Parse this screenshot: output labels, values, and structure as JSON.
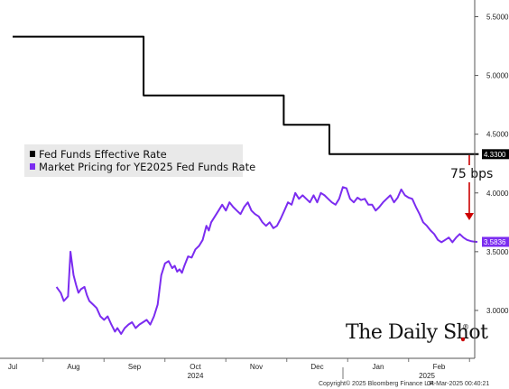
{
  "chart_data": {
    "type": "line",
    "title": "",
    "xlabel": "",
    "ylabel": "",
    "ylim": [
      2.7,
      5.55
    ],
    "grid": false,
    "legend_position": "middle-left",
    "y_ticks": [
      "5.5000",
      "5.0000",
      "4.5000",
      "4.0000",
      "3.5000",
      "3.0000"
    ],
    "y_tick_values": [
      5.5,
      5.0,
      4.5,
      4.0,
      3.5,
      3.0
    ],
    "x_month_labels": [
      "Jul",
      "Aug",
      "Sep",
      "Oct",
      "Nov",
      "Dec",
      "Jan",
      "Feb"
    ],
    "x_month_index": [
      0,
      1,
      2,
      3,
      4,
      5,
      6,
      7
    ],
    "x_year_labels": [
      "2024",
      "2025"
    ],
    "x_year_index": [
      3,
      6.8
    ],
    "colors": {
      "effr": "#000000",
      "market": "#7b2cf0",
      "arrow": "#cc0000",
      "brand_dot": "#cc0000"
    },
    "series": [
      {
        "name": "Fed Funds Effective Rate",
        "x": [
          0,
          2.15,
          2.15,
          4.45,
          4.45,
          5.2,
          5.2,
          7.65
        ],
        "values": [
          5.33,
          5.33,
          4.83,
          4.83,
          4.58,
          4.58,
          4.33,
          4.33
        ],
        "last_label": "4.3300"
      },
      {
        "name": "Market Pricing for YE2025 Fed Funds Rate",
        "x": [
          0.72,
          0.79,
          0.84,
          0.91,
          0.95,
          1.0,
          1.04,
          1.08,
          1.12,
          1.18,
          1.22,
          1.26,
          1.32,
          1.38,
          1.44,
          1.5,
          1.56,
          1.62,
          1.68,
          1.72,
          1.78,
          1.84,
          1.9,
          1.96,
          2.02,
          2.08,
          2.14,
          2.2,
          2.26,
          2.32,
          2.38,
          2.44,
          2.5,
          2.56,
          2.62,
          2.66,
          2.7,
          2.74,
          2.78,
          2.82,
          2.88,
          2.94,
          3.0,
          3.06,
          3.12,
          3.18,
          3.22,
          3.26,
          3.32,
          3.38,
          3.44,
          3.5,
          3.56,
          3.62,
          3.68,
          3.74,
          3.8,
          3.86,
          3.92,
          3.98,
          4.04,
          4.1,
          4.16,
          4.22,
          4.28,
          4.34,
          4.4,
          4.46,
          4.52,
          4.58,
          4.64,
          4.7,
          4.76,
          4.82,
          4.88,
          4.94,
          5.0,
          5.06,
          5.12,
          5.18,
          5.24,
          5.3,
          5.36,
          5.42,
          5.48,
          5.54,
          5.6,
          5.66,
          5.72,
          5.78,
          5.84,
          5.9,
          5.96,
          6.02,
          6.08,
          6.14,
          6.2,
          6.26,
          6.32,
          6.38,
          6.44,
          6.5,
          6.56,
          6.62,
          6.68,
          6.74,
          6.8,
          6.86,
          6.92,
          6.98,
          7.04,
          7.1,
          7.16,
          7.22,
          7.28,
          7.34,
          7.4,
          7.46,
          7.52,
          7.58,
          7.63
        ],
        "values": [
          3.2,
          3.15,
          3.08,
          3.12,
          3.5,
          3.3,
          3.22,
          3.15,
          3.18,
          3.2,
          3.13,
          3.08,
          3.05,
          3.02,
          2.95,
          2.92,
          2.95,
          2.88,
          2.82,
          2.85,
          2.8,
          2.85,
          2.88,
          2.9,
          2.85,
          2.88,
          2.9,
          2.92,
          2.88,
          2.95,
          3.05,
          3.3,
          3.4,
          3.42,
          3.36,
          3.38,
          3.33,
          3.35,
          3.32,
          3.38,
          3.46,
          3.45,
          3.52,
          3.55,
          3.6,
          3.72,
          3.68,
          3.75,
          3.8,
          3.85,
          3.9,
          3.85,
          3.92,
          3.88,
          3.85,
          3.82,
          3.88,
          3.92,
          3.85,
          3.82,
          3.8,
          3.75,
          3.72,
          3.75,
          3.7,
          3.72,
          3.78,
          3.85,
          3.92,
          3.9,
          4.0,
          3.95,
          3.98,
          3.95,
          3.92,
          3.98,
          3.92,
          4.0,
          3.98,
          3.95,
          3.92,
          3.9,
          3.95,
          4.05,
          4.04,
          3.95,
          3.92,
          3.96,
          3.94,
          3.95,
          3.9,
          3.9,
          3.85,
          3.88,
          3.92,
          3.95,
          3.98,
          3.92,
          3.96,
          4.03,
          3.98,
          3.96,
          3.95,
          3.88,
          3.82,
          3.75,
          3.72,
          3.68,
          3.65,
          3.6,
          3.58,
          3.6,
          3.62,
          3.58,
          3.62,
          3.65,
          3.62,
          3.6,
          3.59,
          3.585,
          3.5836
        ],
        "last_label": "3.5836"
      }
    ],
    "annotation": {
      "text": "75 bps"
    }
  },
  "brand": {
    "name": "The Daily Shot",
    "mark": "®"
  },
  "footer": {
    "copyright": "Copyright© 2025 Bloomberg Finance L.P.",
    "timestamp": "04-Mar-2025 00:40:21"
  }
}
